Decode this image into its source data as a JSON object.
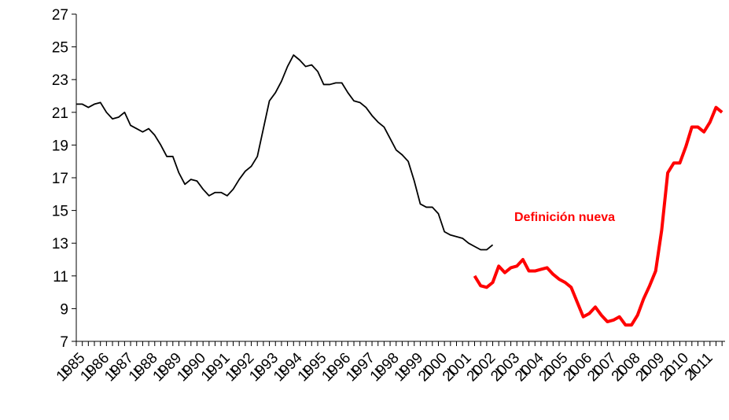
{
  "chart_data": {
    "type": "line",
    "categories": [
      "1985",
      null,
      null,
      null,
      "1986",
      null,
      null,
      null,
      "1987",
      null,
      null,
      null,
      "1988",
      null,
      null,
      null,
      "1989",
      null,
      null,
      null,
      "1990",
      null,
      null,
      null,
      "1991",
      null,
      null,
      null,
      "1992",
      null,
      null,
      null,
      "1993",
      null,
      null,
      null,
      "1994",
      null,
      null,
      null,
      "1995",
      null,
      null,
      null,
      "1996",
      null,
      null,
      null,
      "1997",
      null,
      null,
      null,
      "1998",
      null,
      null,
      null,
      "1999",
      null,
      null,
      null,
      "2000",
      null,
      null,
      null,
      "2001",
      null,
      null,
      null,
      "2002",
      null,
      null,
      null,
      "2003",
      null,
      null,
      null,
      "2004",
      null,
      null,
      null,
      "2005",
      null,
      null,
      null,
      "2006",
      null,
      null,
      null,
      "2007",
      null,
      null,
      null,
      "2008",
      null,
      null,
      null,
      "2009",
      null,
      null,
      null,
      "2010",
      null,
      null,
      null,
      "2011",
      null,
      null,
      null
    ],
    "quarter_label": "I",
    "series": [
      {
        "color": "#000000",
        "linewidth": 1.8,
        "values": [
          21.5,
          21.5,
          21.3,
          21.5,
          21.6,
          21.0,
          20.6,
          20.7,
          21.0,
          20.2,
          20.0,
          19.8,
          20.0,
          19.6,
          19.0,
          18.3,
          18.3,
          17.3,
          16.6,
          16.9,
          16.8,
          16.3,
          15.9,
          16.1,
          16.1,
          15.9,
          16.3,
          16.9,
          17.4,
          17.7,
          18.3,
          20.0,
          21.7,
          22.2,
          22.9,
          23.8,
          24.5,
          24.2,
          23.8,
          23.9,
          23.5,
          22.7,
          22.7,
          22.8,
          22.8,
          22.2,
          21.7,
          21.6,
          21.3,
          20.8,
          20.4,
          20.1,
          19.4,
          18.7,
          18.4,
          18.0,
          16.8,
          15.4,
          15.2,
          15.2,
          14.8,
          13.7,
          13.5,
          13.4,
          13.3,
          13.0,
          12.8,
          12.6,
          12.6,
          12.9,
          null,
          null,
          null,
          null,
          null,
          null,
          null,
          null,
          null,
          null,
          null,
          null,
          null,
          null,
          null,
          null,
          null,
          null,
          null,
          null,
          null,
          null,
          null,
          null,
          null,
          null,
          null,
          null,
          null,
          null,
          null,
          null,
          null,
          null,
          null,
          null,
          null,
          null
        ]
      },
      {
        "color": "#ff0000",
        "linewidth": 4,
        "values": [
          null,
          null,
          null,
          null,
          null,
          null,
          null,
          null,
          null,
          null,
          null,
          null,
          null,
          null,
          null,
          null,
          null,
          null,
          null,
          null,
          null,
          null,
          null,
          null,
          null,
          null,
          null,
          null,
          null,
          null,
          null,
          null,
          null,
          null,
          null,
          null,
          null,
          null,
          null,
          null,
          null,
          null,
          null,
          null,
          null,
          null,
          null,
          null,
          null,
          null,
          null,
          null,
          null,
          null,
          null,
          null,
          null,
          null,
          null,
          null,
          null,
          null,
          null,
          null,
          null,
          null,
          11.0,
          10.4,
          10.3,
          10.6,
          11.6,
          11.2,
          11.5,
          11.6,
          12.0,
          11.3,
          11.3,
          11.4,
          11.5,
          11.1,
          10.8,
          10.6,
          10.3,
          9.4,
          8.5,
          8.7,
          9.1,
          8.6,
          8.2,
          8.3,
          8.5,
          8.0,
          8.0,
          8.6,
          9.6,
          10.4,
          11.3,
          13.8,
          17.3,
          17.9,
          17.9,
          18.9,
          20.1,
          20.1,
          19.8,
          20.4,
          21.3,
          21.0
        ]
      }
    ],
    "annotation": "Definición nueva",
    "ylim": [
      7,
      27
    ],
    "yticks": [
      7,
      9,
      11,
      13,
      15,
      17,
      19,
      21,
      23,
      25,
      27
    ]
  }
}
